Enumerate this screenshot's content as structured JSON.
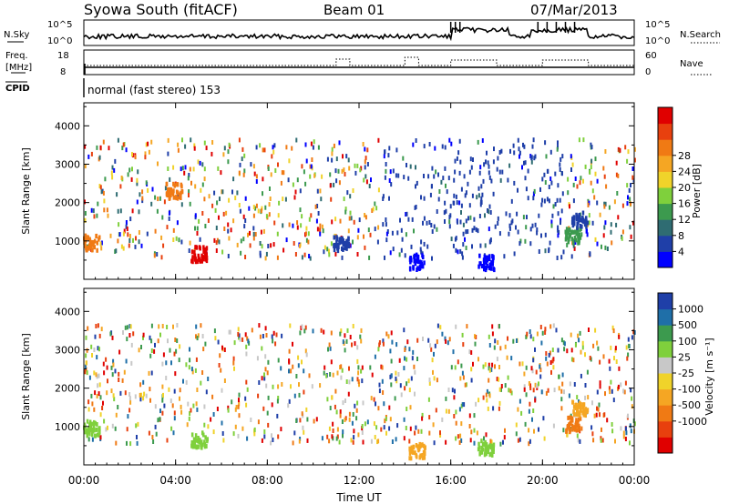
{
  "header": {
    "station": "Syowa South (fitACF)",
    "beam": "Beam 01",
    "date": "07/Mar/2013"
  },
  "status_panels": {
    "nsky_label": "N.Sky",
    "nsky_ticks": [
      "10^5",
      "10^0"
    ],
    "nsearch_label": "N.Search",
    "freq_label_1": "Freq.",
    "freq_label_2": "[MHz]",
    "freq_ticks": [
      "18",
      "8"
    ],
    "nave_label": "Nave",
    "nave_ticks": [
      "60",
      "0"
    ],
    "cpid_label": "CPID",
    "mode_text": "normal (fast stereo) 153"
  },
  "colors": {
    "power": [
      "#0000ff",
      "#1f3fa8",
      "#2f6c72",
      "#3c9a4e",
      "#7fd03c",
      "#f0d32a",
      "#f5a623",
      "#f07a14",
      "#e8400e",
      "#e00000"
    ],
    "velocity": [
      "#e00000",
      "#e8400e",
      "#f07a14",
      "#f5a623",
      "#f0d32a",
      "#c8c8c8",
      "#7fd03c",
      "#3c9a4e",
      "#1f6fa8",
      "#1f3fa8"
    ]
  },
  "chart_data": [
    {
      "type": "heatmap",
      "panel": "power",
      "ylabel": "Slant Range [km]",
      "ylim": [
        0,
        4600
      ],
      "yticks": [
        "1000",
        "2000",
        "3000",
        "4000"
      ],
      "xticks": [
        "00:00",
        "04:00",
        "08:00",
        "12:00",
        "16:00",
        "20:00",
        "00:00"
      ],
      "colorbar_label": "Power [dB]",
      "colorbar_ticks": [
        "4",
        "8",
        "12",
        "16",
        "20",
        "24",
        "28"
      ],
      "clusters": [
        {
          "t": 0.3,
          "r": 1000,
          "level": 7
        },
        {
          "t": 3.9,
          "r": 2350,
          "level": 7
        },
        {
          "t": 5.0,
          "r": 700,
          "level": 9
        },
        {
          "t": 11.2,
          "r": 1000,
          "level": 1
        },
        {
          "t": 14.5,
          "r": 500,
          "level": 0
        },
        {
          "t": 17.5,
          "r": 500,
          "level": 0
        },
        {
          "t": 21.3,
          "r": 1200,
          "level": 3
        },
        {
          "t": 21.6,
          "r": 1600,
          "level": 1
        }
      ]
    },
    {
      "type": "heatmap",
      "panel": "velocity",
      "ylabel": "Slant Range [km]",
      "xlabel": "Time UT",
      "ylim": [
        0,
        4600
      ],
      "yticks": [
        "1000",
        "2000",
        "3000",
        "4000"
      ],
      "xticks": [
        "00:00",
        "04:00",
        "08:00",
        "12:00",
        "16:00",
        "20:00",
        "00:00"
      ],
      "colorbar_label": "Velocity [m s⁻¹]",
      "colorbar_ticks": [
        "1000",
        "500",
        "100",
        "25",
        "-25",
        "-100",
        "-500",
        "-1000"
      ],
      "clusters": [
        {
          "t": 0.3,
          "r": 1000,
          "level": 6
        },
        {
          "t": 5.0,
          "r": 700,
          "level": 6
        },
        {
          "t": 14.5,
          "r": 400,
          "level": 3
        },
        {
          "t": 17.5,
          "r": 500,
          "level": 6
        },
        {
          "t": 21.3,
          "r": 1100,
          "level": 2
        },
        {
          "t": 21.6,
          "r": 1500,
          "level": 3
        }
      ]
    }
  ]
}
